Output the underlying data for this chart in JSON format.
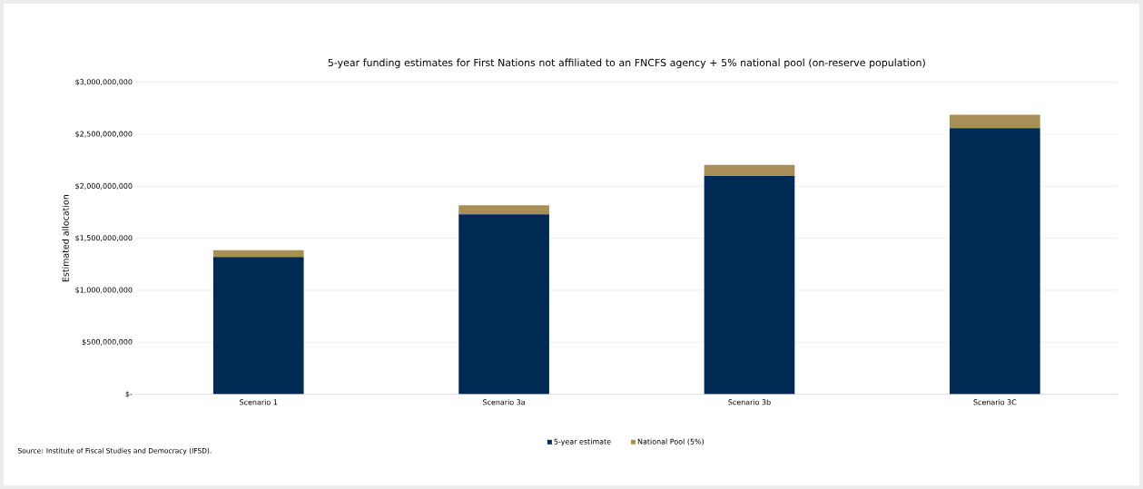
{
  "chart_data": {
    "type": "bar",
    "stacked": true,
    "title": "5-year funding estimates for First Nations not affiliated to an FNCFS agency + 5% national pool (on-reserve population)",
    "ylabel": "Estimated allocation",
    "categories": [
      "Scenario 1",
      "Scenario 3a",
      "Scenario 3b",
      "Scenario 3C"
    ],
    "series": [
      {
        "name": "5-year estimate",
        "color": "#002a54",
        "values": [
          1320000000,
          1730000000,
          2100000000,
          2560000000
        ]
      },
      {
        "name": "National Pool (5%)",
        "color": "#a88f58",
        "values": [
          66000000,
          87000000,
          105000000,
          128000000
        ]
      }
    ],
    "ylim": [
      0,
      3000000000
    ],
    "yticks": [
      {
        "value": 0,
        "label": "$-"
      },
      {
        "value": 500000000,
        "label": "$500,000,000"
      },
      {
        "value": 1000000000,
        "label": "$1,000,000,000"
      },
      {
        "value": 1500000000,
        "label": "$1,500,000,000"
      },
      {
        "value": 2000000000,
        "label": "$2,000,000,000"
      },
      {
        "value": 2500000000,
        "label": "$2,500,000,000"
      },
      {
        "value": 3000000000,
        "label": "$3,000,000,000"
      }
    ],
    "grid": "y",
    "legend": "bottom",
    "annotations": [
      "Source: Institute  of Fiscal Studies and Democracy (IFSD)."
    ]
  }
}
